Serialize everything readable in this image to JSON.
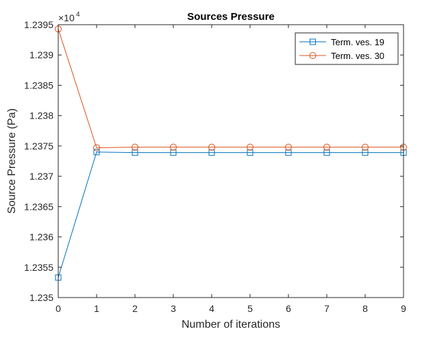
{
  "chart_data": {
    "type": "line",
    "title": "Sources Pressure",
    "xlabel": "Number of iterations",
    "ylabel": "Source Pressure (Pa)",
    "exponent_label": {
      "base": "×10",
      "power": "4"
    },
    "xlim": [
      0,
      9
    ],
    "ylim": [
      1.235,
      1.2395
    ],
    "x_ticks": [
      0,
      1,
      2,
      3,
      4,
      5,
      6,
      7,
      8,
      9
    ],
    "x_tick_labels": [
      "0",
      "1",
      "2",
      "3",
      "4",
      "5",
      "6",
      "7",
      "8",
      "9"
    ],
    "y_ticks": [
      1.235,
      1.2355,
      1.236,
      1.2365,
      1.237,
      1.2375,
      1.238,
      1.2385,
      1.239,
      1.2395
    ],
    "y_tick_labels": [
      "1.235",
      "1.2355",
      "1.236",
      "1.2365",
      "1.237",
      "1.2375",
      "1.238",
      "1.2385",
      "1.239",
      "1.2395"
    ],
    "grid": false,
    "legend_position": "top-right",
    "x": [
      0,
      1,
      2,
      3,
      4,
      5,
      6,
      7,
      8,
      9
    ],
    "series": [
      {
        "name": "Term. ves. 19",
        "color": "#0072BD",
        "marker": "square",
        "values": [
          1.23533,
          1.2374,
          1.23739,
          1.23739,
          1.23739,
          1.23739,
          1.23739,
          1.23739,
          1.23739,
          1.23739
        ]
      },
      {
        "name": "Term. ves. 30",
        "color": "#D95319",
        "marker": "circle",
        "values": [
          1.23943,
          1.23747,
          1.23748,
          1.23748,
          1.23748,
          1.23748,
          1.23748,
          1.23748,
          1.23748,
          1.23748
        ]
      }
    ]
  }
}
